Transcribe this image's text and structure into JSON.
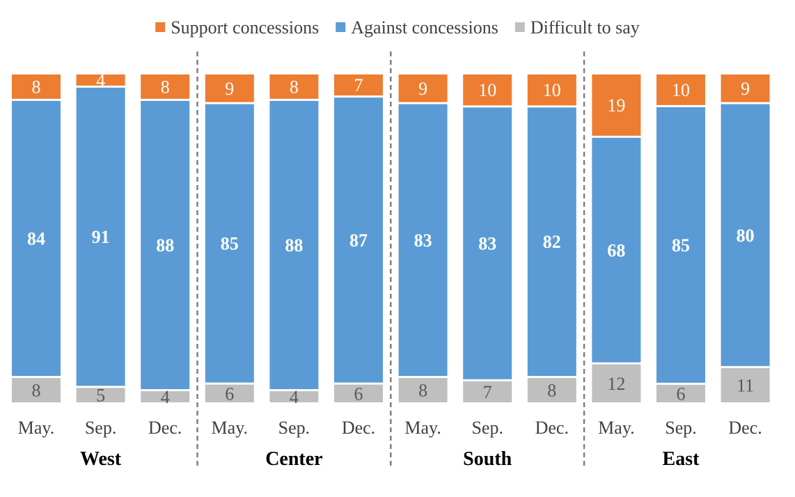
{
  "chart_data": {
    "type": "bar",
    "stacked": true,
    "orientation": "vertical",
    "groups": [
      {
        "name": "West",
        "categories": [
          "May.",
          "Sep.",
          "Dec."
        ]
      },
      {
        "name": "Center",
        "categories": [
          "May.",
          "Sep.",
          "Dec."
        ]
      },
      {
        "name": "South",
        "categories": [
          "May.",
          "Sep.",
          "Dec."
        ]
      },
      {
        "name": "East",
        "categories": [
          "May.",
          "Sep.",
          "Dec."
        ]
      }
    ],
    "series": [
      {
        "name": "Difficult to say",
        "color": "#bfbfbf",
        "label_color": "#595959",
        "label_bold": false,
        "values": [
          8,
          5,
          4,
          6,
          4,
          6,
          8,
          7,
          8,
          12,
          6,
          11
        ]
      },
      {
        "name": "Against concessions",
        "color": "#5b9bd5",
        "label_color": "#ffffff",
        "label_bold": true,
        "values": [
          84,
          91,
          88,
          85,
          88,
          87,
          83,
          83,
          82,
          68,
          85,
          80
        ]
      },
      {
        "name": "Support concessions",
        "color": "#ed7d31",
        "label_color": "#ffffff",
        "label_bold": false,
        "values": [
          8,
          4,
          8,
          9,
          8,
          7,
          9,
          10,
          10,
          19,
          10,
          9
        ]
      }
    ],
    "legend_order": [
      "Support concessions",
      "Against concessions",
      "Difficult to say"
    ],
    "legend_position": "top",
    "group_separators": "dashed",
    "ylim": [
      0,
      100
    ],
    "grid": false
  }
}
